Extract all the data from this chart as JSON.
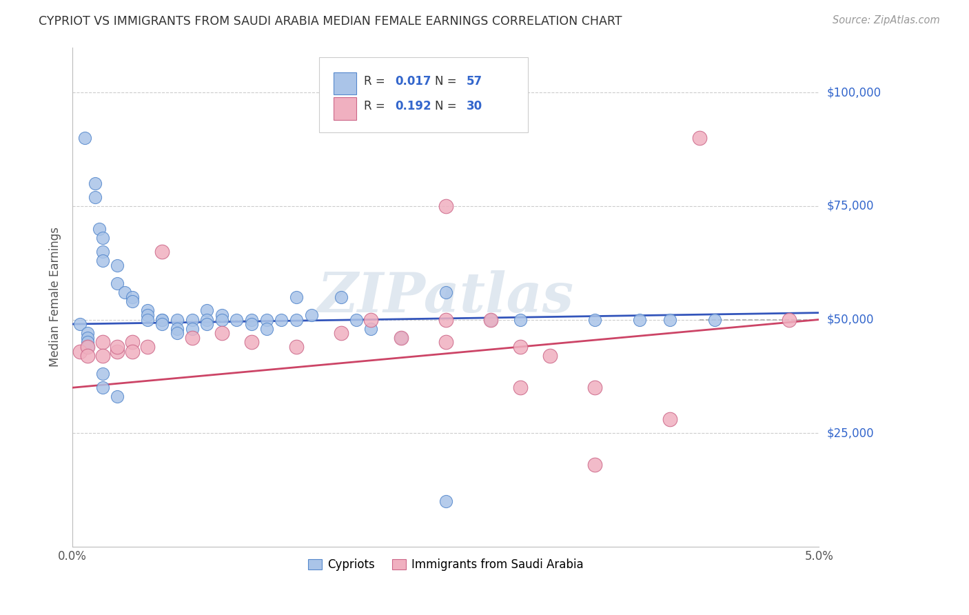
{
  "title": "CYPRIOT VS IMMIGRANTS FROM SAUDI ARABIA MEDIAN FEMALE EARNINGS CORRELATION CHART",
  "source": "Source: ZipAtlas.com",
  "ylabel": "Median Female Earnings",
  "ytick_labels": [
    "$25,000",
    "$50,000",
    "$75,000",
    "$100,000"
  ],
  "ytick_values": [
    25000,
    50000,
    75000,
    100000
  ],
  "xmin": 0.0,
  "xmax": 0.05,
  "ymin": 0,
  "ymax": 110000,
  "legend_r_blue": "0.017",
  "legend_n_blue": "57",
  "legend_r_pink": "0.192",
  "legend_n_pink": "30",
  "legend_label_blue": "Cypriots",
  "legend_label_pink": "Immigrants from Saudi Arabia",
  "blue_fill": "#aac4e8",
  "blue_edge": "#5588cc",
  "pink_fill": "#f0b0c0",
  "pink_edge": "#cc6688",
  "blue_line_color": "#3355bb",
  "pink_line_color": "#cc4466",
  "dashed_line_color": "#aaaaaa",
  "watermark_color": "#e0e8f0",
  "blue_x": [
    0.0008,
    0.0015,
    0.0015,
    0.0018,
    0.002,
    0.002,
    0.002,
    0.003,
    0.003,
    0.0035,
    0.004,
    0.004,
    0.005,
    0.005,
    0.005,
    0.006,
    0.006,
    0.006,
    0.007,
    0.007,
    0.007,
    0.008,
    0.008,
    0.009,
    0.009,
    0.009,
    0.01,
    0.01,
    0.011,
    0.012,
    0.012,
    0.013,
    0.013,
    0.014,
    0.015,
    0.015,
    0.016,
    0.018,
    0.019,
    0.02,
    0.022,
    0.025,
    0.028,
    0.03,
    0.035,
    0.038,
    0.04,
    0.043,
    0.0005,
    0.001,
    0.001,
    0.001,
    0.001,
    0.002,
    0.002,
    0.003,
    0.025
  ],
  "blue_y": [
    90000,
    80000,
    77000,
    70000,
    68000,
    65000,
    63000,
    62000,
    58000,
    56000,
    55000,
    54000,
    52000,
    51000,
    50000,
    50000,
    50000,
    49000,
    50000,
    48000,
    47000,
    50000,
    48000,
    52000,
    50000,
    49000,
    51000,
    50000,
    50000,
    50000,
    49000,
    50000,
    48000,
    50000,
    55000,
    50000,
    51000,
    55000,
    50000,
    48000,
    46000,
    56000,
    50000,
    50000,
    50000,
    50000,
    50000,
    50000,
    49000,
    47000,
    46000,
    45000,
    44000,
    38000,
    35000,
    33000,
    10000
  ],
  "pink_x": [
    0.0005,
    0.001,
    0.001,
    0.002,
    0.002,
    0.003,
    0.003,
    0.004,
    0.004,
    0.005,
    0.006,
    0.008,
    0.01,
    0.012,
    0.015,
    0.018,
    0.02,
    0.022,
    0.025,
    0.028,
    0.03,
    0.032,
    0.035,
    0.04,
    0.042,
    0.025,
    0.03,
    0.048,
    0.025,
    0.035
  ],
  "pink_y": [
    43000,
    44000,
    42000,
    45000,
    42000,
    43000,
    44000,
    45000,
    43000,
    44000,
    65000,
    46000,
    47000,
    45000,
    44000,
    47000,
    50000,
    46000,
    45000,
    50000,
    44000,
    42000,
    35000,
    28000,
    90000,
    50000,
    35000,
    50000,
    75000,
    18000
  ]
}
